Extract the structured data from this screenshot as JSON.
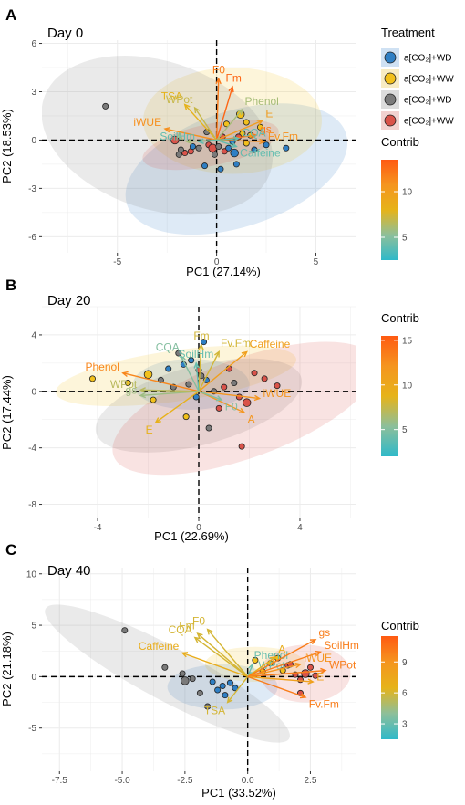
{
  "colorbar_colors": [
    "#2FB9C9",
    "#8DBF9A",
    "#E6B31A",
    "#F5951F",
    "#FF5A12"
  ],
  "legend": {
    "title": "Treatment",
    "items": [
      {
        "label": "a[CO₂]+WD",
        "color": "#2F7FC4",
        "fill": "#cfe1f3"
      },
      {
        "label": "a[CO₂]+WW",
        "color": "#F2C01B",
        "fill": "#f8ecc2"
      },
      {
        "label": "e[CO₂]+WD",
        "color": "#7a7a7a",
        "fill": "#dcdcdc"
      },
      {
        "label": "e[CO₂]+WW",
        "color": "#D9534A",
        "fill": "#f2d2d0"
      }
    ]
  },
  "chart_data": [
    {
      "type": "scatter",
      "panel_label": "A",
      "title": "Day 0",
      "xlabel": "PC1 (27.14%)",
      "ylabel": "PC2 (18.53%)",
      "xlim": [
        -8.8,
        7.0
      ],
      "ylim": [
        -7.0,
        6.2
      ],
      "xticks": [
        -5,
        0,
        5
      ],
      "yticks": [
        -6,
        -3,
        0,
        3,
        6
      ],
      "contrib": {
        "title": "Contrib",
        "range": [
          2.5,
          13.5
        ],
        "ticks": [
          5,
          10
        ]
      },
      "ellipses": [
        {
          "group": 0,
          "cx": 1.0,
          "cy": -1.8,
          "rx": 5.8,
          "ry": 3.6,
          "angle": 18
        },
        {
          "group": 1,
          "cx": 0.8,
          "cy": 1.2,
          "rx": 4.5,
          "ry": 3.3,
          "angle": 0
        },
        {
          "group": 2,
          "cx": -3.0,
          "cy": 0.3,
          "rx": 6.0,
          "ry": 4.6,
          "angle": -18
        },
        {
          "group": 3,
          "cx": -0.3,
          "cy": -0.3,
          "rx": 3.5,
          "ry": 1.3,
          "angle": 12
        }
      ],
      "points": [
        {
          "x": -5.6,
          "y": 2.1,
          "g": 2,
          "s": 5
        },
        {
          "x": -2.1,
          "y": 0.0,
          "g": 3,
          "s": 7
        },
        {
          "x": -1.9,
          "y": -0.9,
          "g": 2,
          "s": 5
        },
        {
          "x": -1.6,
          "y": -0.8,
          "g": 3,
          "s": 5
        },
        {
          "x": -1.3,
          "y": -0.7,
          "g": 3,
          "s": 5
        },
        {
          "x": -1.8,
          "y": -0.6,
          "g": 2,
          "s": 5
        },
        {
          "x": -1.2,
          "y": -0.4,
          "g": 0,
          "s": 5
        },
        {
          "x": -0.9,
          "y": -0.5,
          "g": 2,
          "s": 5
        },
        {
          "x": -0.6,
          "y": -1.6,
          "g": 0,
          "s": 5
        },
        {
          "x": -0.4,
          "y": -0.3,
          "g": 3,
          "s": 5
        },
        {
          "x": -0.2,
          "y": -0.5,
          "g": 3,
          "s": 7
        },
        {
          "x": -0.1,
          "y": -0.9,
          "g": 2,
          "s": 5
        },
        {
          "x": 0.1,
          "y": -0.4,
          "g": 2,
          "s": 5
        },
        {
          "x": 0.2,
          "y": -1.8,
          "g": 0,
          "s": 5
        },
        {
          "x": 0.4,
          "y": -0.7,
          "g": 3,
          "s": 5
        },
        {
          "x": 0.6,
          "y": -0.5,
          "g": 0,
          "s": 5
        },
        {
          "x": 0.8,
          "y": -0.1,
          "g": 0,
          "s": 5
        },
        {
          "x": 1.0,
          "y": -1.5,
          "g": 0,
          "s": 5
        },
        {
          "x": 1.2,
          "y": 1.6,
          "g": 1,
          "s": 7
        },
        {
          "x": 1.3,
          "y": 0.4,
          "g": 1,
          "s": 5
        },
        {
          "x": 1.5,
          "y": 1.1,
          "g": 1,
          "s": 5
        },
        {
          "x": 1.7,
          "y": 0.3,
          "g": 1,
          "s": 5
        },
        {
          "x": 1.9,
          "y": -0.6,
          "g": 0,
          "s": 5
        },
        {
          "x": 2.2,
          "y": 0.8,
          "g": 1,
          "s": 5
        },
        {
          "x": 2.5,
          "y": -0.3,
          "g": 0,
          "s": 5
        },
        {
          "x": 3.5,
          "y": -0.5,
          "g": 0,
          "s": 5
        },
        {
          "x": 0.9,
          "y": -0.8,
          "g": 0,
          "s": 7
        },
        {
          "x": 0.3,
          "y": 0.2,
          "g": 3,
          "s": 5
        },
        {
          "x": -0.5,
          "y": 0.5,
          "g": 2,
          "s": 5
        },
        {
          "x": 1.5,
          "y": -0.2,
          "g": 1,
          "s": 5
        },
        {
          "x": 0.5,
          "y": 1.0,
          "g": 1,
          "s": 5
        },
        {
          "x": 1.1,
          "y": 0.2,
          "g": 3,
          "s": 5
        }
      ],
      "vectors": [
        {
          "label": "F0",
          "x": 0.1,
          "y": 3.8,
          "c": 12
        },
        {
          "label": "Fm",
          "x": 0.8,
          "y": 3.3,
          "c": 13
        },
        {
          "label": "TSA",
          "x": -1.6,
          "y": 2.2,
          "c": 8
        },
        {
          "label": "WPot",
          "x": -1.1,
          "y": 2.0,
          "c": 7
        },
        {
          "label": "Phenol",
          "x": 1.3,
          "y": 1.9,
          "c": 6
        },
        {
          "label": "iWUE",
          "x": -2.6,
          "y": 0.7,
          "c": 11
        },
        {
          "label": "E",
          "x": 2.3,
          "y": 1.2,
          "c": 10
        },
        {
          "label": "gs",
          "x": 2.0,
          "y": 0.3,
          "c": 12
        },
        {
          "label": "Fv.Fm",
          "x": 2.4,
          "y": -0.1,
          "c": 11
        },
        {
          "label": "CQA",
          "x": 1.1,
          "y": 0.1,
          "c": 4
        },
        {
          "label": "Caffeine",
          "x": 1.0,
          "y": -0.4,
          "c": 4
        },
        {
          "label": "A",
          "x": -1.5,
          "y": -0.1,
          "c": 6
        },
        {
          "label": "SoilHm",
          "x": -0.9,
          "y": -0.1,
          "c": 4
        }
      ]
    },
    {
      "type": "scatter",
      "panel_label": "B",
      "title": "Day 20",
      "xlabel": "PC1 (22.69%)",
      "ylabel": "PC2 (17.44%)",
      "xlim": [
        -6.2,
        6.2
      ],
      "ylim": [
        -9.0,
        6.0
      ],
      "xticks": [
        -4,
        0,
        4
      ],
      "yticks": [
        -8,
        -4,
        0,
        4
      ],
      "contrib": {
        "title": "Contrib",
        "range": [
          2.0,
          15.5
        ],
        "ticks": [
          5,
          10,
          15
        ]
      },
      "ellipses": [
        {
          "group": 0,
          "cx": -0.3,
          "cy": 0.5,
          "rx": 2.3,
          "ry": 1.8,
          "angle": 0
        },
        {
          "group": 1,
          "cx": -0.9,
          "cy": 1.1,
          "rx": 4.8,
          "ry": 1.8,
          "angle": 8
        },
        {
          "group": 2,
          "cx": 0.0,
          "cy": -1.0,
          "rx": 4.2,
          "ry": 2.8,
          "angle": 15
        },
        {
          "group": 3,
          "cx": 1.8,
          "cy": -1.2,
          "rx": 5.5,
          "ry": 3.5,
          "angle": 20
        }
      ],
      "points": [
        {
          "x": -4.2,
          "y": 0.9,
          "g": 1,
          "s": 5
        },
        {
          "x": -2.8,
          "y": 0.6,
          "g": 1,
          "s": 5
        },
        {
          "x": -2.0,
          "y": 1.2,
          "g": 1,
          "s": 7
        },
        {
          "x": -1.8,
          "y": -0.6,
          "g": 1,
          "s": 5
        },
        {
          "x": -1.5,
          "y": 0.8,
          "g": 2,
          "s": 5
        },
        {
          "x": -1.2,
          "y": 1.6,
          "g": 0,
          "s": 5
        },
        {
          "x": -1.0,
          "y": 0.3,
          "g": 2,
          "s": 5
        },
        {
          "x": -0.8,
          "y": 2.7,
          "g": 2,
          "s": 5
        },
        {
          "x": -0.6,
          "y": 1.9,
          "g": 0,
          "s": 5
        },
        {
          "x": -0.4,
          "y": 0.5,
          "g": 2,
          "s": 5
        },
        {
          "x": -0.3,
          "y": 2.2,
          "g": 0,
          "s": 5
        },
        {
          "x": -0.1,
          "y": -0.4,
          "g": 0,
          "s": 5
        },
        {
          "x": 0.1,
          "y": 1.1,
          "g": 2,
          "s": 5
        },
        {
          "x": 0.3,
          "y": 0.8,
          "g": 0,
          "s": 5
        },
        {
          "x": 0.4,
          "y": -2.6,
          "g": 2,
          "s": 5
        },
        {
          "x": 0.6,
          "y": 0.0,
          "g": 2,
          "s": 5
        },
        {
          "x": 0.8,
          "y": -1.2,
          "g": 3,
          "s": 5
        },
        {
          "x": 1.0,
          "y": 0.3,
          "g": 3,
          "s": 5
        },
        {
          "x": 1.2,
          "y": 1.6,
          "g": 3,
          "s": 5
        },
        {
          "x": 1.4,
          "y": 0.6,
          "g": 2,
          "s": 5
        },
        {
          "x": 1.6,
          "y": -0.4,
          "g": 3,
          "s": 5
        },
        {
          "x": 1.9,
          "y": -0.8,
          "g": 3,
          "s": 7
        },
        {
          "x": 2.2,
          "y": 1.3,
          "g": 3,
          "s": 5
        },
        {
          "x": 2.6,
          "y": 0.9,
          "g": 3,
          "s": 5
        },
        {
          "x": 3.1,
          "y": 0.4,
          "g": 3,
          "s": 5
        },
        {
          "x": 1.7,
          "y": -3.9,
          "g": 3,
          "s": 5
        },
        {
          "x": -0.5,
          "y": -1.8,
          "g": 1,
          "s": 5
        },
        {
          "x": 0.2,
          "y": 3.5,
          "g": 0,
          "s": 5
        },
        {
          "x": 0.0,
          "y": 1.5,
          "g": 3,
          "s": 5
        }
      ],
      "vectors": [
        {
          "label": "Phenol",
          "x": -3.0,
          "y": 1.3,
          "c": 13
        },
        {
          "label": "Fm",
          "x": 0.1,
          "y": 3.3,
          "c": 8
        },
        {
          "label": "Fv.Fm",
          "x": 0.8,
          "y": 2.8,
          "c": 8
        },
        {
          "label": "Caffeine",
          "x": 1.9,
          "y": 2.8,
          "c": 11
        },
        {
          "label": "CQA",
          "x": -0.7,
          "y": 2.5,
          "c": 5
        },
        {
          "label": "SoilHm",
          "x": -0.1,
          "y": 2.0,
          "c": 4
        },
        {
          "label": "WPot",
          "x": -2.3,
          "y": 0.1,
          "c": 7
        },
        {
          "label": "gs",
          "x": -2.3,
          "y": -0.3,
          "c": 6
        },
        {
          "label": "E",
          "x": -1.7,
          "y": -2.2,
          "c": 9
        },
        {
          "label": "A",
          "x": 1.8,
          "y": -1.5,
          "c": 12
        },
        {
          "label": "iWUE",
          "x": 2.4,
          "y": -0.5,
          "c": 12
        },
        {
          "label": "F0",
          "x": 0.9,
          "y": -0.6,
          "c": 5
        }
      ]
    },
    {
      "type": "scatter",
      "panel_label": "C",
      "title": "Day 40",
      "xlabel": "PC1 (33.52%)",
      "ylabel": "PC2 (21.18%)",
      "xlim": [
        -8.2,
        4.3
      ],
      "ylim": [
        -9.2,
        10.6
      ],
      "xticks": [
        -7.5,
        -5.0,
        -2.5,
        0.0,
        2.5
      ],
      "yticks": [
        -5,
        0,
        5,
        10
      ],
      "contrib": {
        "title": "Contrib",
        "range": [
          1.5,
          11.5
        ],
        "ticks": [
          3,
          6,
          9
        ]
      },
      "ellipses": [
        {
          "group": 0,
          "cx": -1.0,
          "cy": -1.0,
          "rx": 2.2,
          "ry": 2.2,
          "angle": 0
        },
        {
          "group": 1,
          "cx": 0.3,
          "cy": 1.2,
          "rx": 2.0,
          "ry": 1.7,
          "angle": 0
        },
        {
          "group": 2,
          "cx": -3.2,
          "cy": 0.3,
          "rx": 5.5,
          "ry": 2.6,
          "angle": -28
        },
        {
          "group": 3,
          "cx": 2.3,
          "cy": 0.3,
          "rx": 1.8,
          "ry": 2.8,
          "angle": 0
        }
      ],
      "points": [
        {
          "x": -4.9,
          "y": 4.5,
          "g": 2,
          "s": 5
        },
        {
          "x": -3.3,
          "y": 0.9,
          "g": 2,
          "s": 5
        },
        {
          "x": -2.6,
          "y": 0.3,
          "g": 2,
          "s": 5
        },
        {
          "x": -2.5,
          "y": -0.4,
          "g": 2,
          "s": 7
        },
        {
          "x": -2.2,
          "y": -0.2,
          "g": 2,
          "s": 5
        },
        {
          "x": -1.4,
          "y": -0.5,
          "g": 0,
          "s": 5
        },
        {
          "x": -1.2,
          "y": -1.3,
          "g": 0,
          "s": 5
        },
        {
          "x": -1.0,
          "y": -0.9,
          "g": 0,
          "s": 5
        },
        {
          "x": -0.9,
          "y": -1.8,
          "g": 0,
          "s": 5
        },
        {
          "x": -0.7,
          "y": -0.6,
          "g": 0,
          "s": 5
        },
        {
          "x": -0.5,
          "y": -1.1,
          "g": 0,
          "s": 5
        },
        {
          "x": -1.6,
          "y": -2.9,
          "g": 2,
          "s": 5
        },
        {
          "x": -1.9,
          "y": -1.6,
          "g": 2,
          "s": 5
        },
        {
          "x": 0.3,
          "y": 1.6,
          "g": 1,
          "s": 5
        },
        {
          "x": 0.9,
          "y": 1.3,
          "g": 1,
          "s": 5
        },
        {
          "x": 1.2,
          "y": 1.8,
          "g": 1,
          "s": 5
        },
        {
          "x": 1.4,
          "y": 0.6,
          "g": 1,
          "s": 5
        },
        {
          "x": 1.6,
          "y": 1.1,
          "g": 3,
          "s": 5
        },
        {
          "x": 1.9,
          "y": 0.2,
          "g": 3,
          "s": 5
        },
        {
          "x": 2.1,
          "y": -0.3,
          "g": 3,
          "s": 5
        },
        {
          "x": 2.3,
          "y": 0.3,
          "g": 3,
          "s": 7
        },
        {
          "x": 2.5,
          "y": 0.9,
          "g": 3,
          "s": 5
        },
        {
          "x": 2.7,
          "y": 0.1,
          "g": 3,
          "s": 5
        },
        {
          "x": 2.1,
          "y": -1.6,
          "g": 3,
          "s": 5
        },
        {
          "x": 1.7,
          "y": 1.2,
          "g": 3,
          "s": 5
        },
        {
          "x": 0.6,
          "y": 0.5,
          "g": 1,
          "s": 5
        }
      ],
      "vectors": [
        {
          "label": "F0",
          "x": -1.6,
          "y": 4.6,
          "c": 6
        },
        {
          "label": "Fm",
          "x": -2.0,
          "y": 4.2,
          "c": 6
        },
        {
          "label": "CQA",
          "x": -2.1,
          "y": 3.8,
          "c": 6
        },
        {
          "label": "Caffeine",
          "x": -2.6,
          "y": 2.3,
          "c": 7
        },
        {
          "label": "TSA",
          "x": -0.8,
          "y": -2.5,
          "c": 6
        },
        {
          "label": "Phenol",
          "x": 0.2,
          "y": 1.2,
          "c": 3
        },
        {
          "label": "WPot",
          "x": 0.3,
          "y": 0.4,
          "c": 3
        },
        {
          "label": "A",
          "x": 1.1,
          "y": 1.9,
          "c": 7
        },
        {
          "label": "gs",
          "x": 2.7,
          "y": 3.6,
          "c": 10
        },
        {
          "label": "SoilHm",
          "x": 2.9,
          "y": 2.4,
          "c": 10
        },
        {
          "label": "iWUE",
          "x": 2.1,
          "y": 1.2,
          "c": 9
        },
        {
          "label": "WPot",
          "x": 3.1,
          "y": 0.6,
          "c": 10
        },
        {
          "label": "E",
          "x": 2.6,
          "y": -0.5,
          "c": 8
        },
        {
          "label": "Fv.Fm",
          "x": 2.3,
          "y": -2.0,
          "c": 10
        }
      ]
    }
  ]
}
